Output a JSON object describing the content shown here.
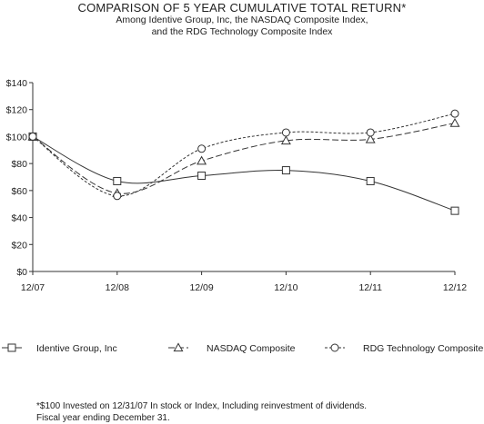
{
  "header": {
    "title": "COMPARISON OF 5 YEAR CUMULATIVE TOTAL RETURN*",
    "subtitle_line1": "Among Identive Group, Inc, the NASDAQ Composite Index,",
    "subtitle_line2": "and the RDG Technology Composite Index"
  },
  "footnote": {
    "line1": "*$100 Invested on 12/31/07 In stock or Index, Including reinvestment of dividends.",
    "line2": "Fiscal year ending December 31."
  },
  "chart_data": {
    "type": "line",
    "title": "COMPARISON OF 5 YEAR CUMULATIVE TOTAL RETURN*",
    "categories": [
      "12/07",
      "12/08",
      "12/09",
      "12/10",
      "12/11",
      "12/12"
    ],
    "y_ticks": [
      "$0",
      "$20",
      "$40",
      "$60",
      "$80",
      "$100",
      "$120",
      "$140"
    ],
    "ylim": [
      0,
      140
    ],
    "grid": false,
    "legend_position": "bottom",
    "series": [
      {
        "name": "Identive Group, Inc",
        "marker": "square",
        "dash": "solid",
        "values": [
          100,
          67,
          71,
          75,
          67,
          45
        ]
      },
      {
        "name": "NASDAQ Composite",
        "marker": "triangle",
        "dash": "long-dash",
        "values": [
          100,
          58,
          82,
          97,
          98,
          110
        ]
      },
      {
        "name": "RDG Technology Composite",
        "marker": "circle",
        "dash": "short-dash",
        "values": [
          100,
          56,
          91,
          103,
          103,
          117
        ]
      }
    ]
  }
}
